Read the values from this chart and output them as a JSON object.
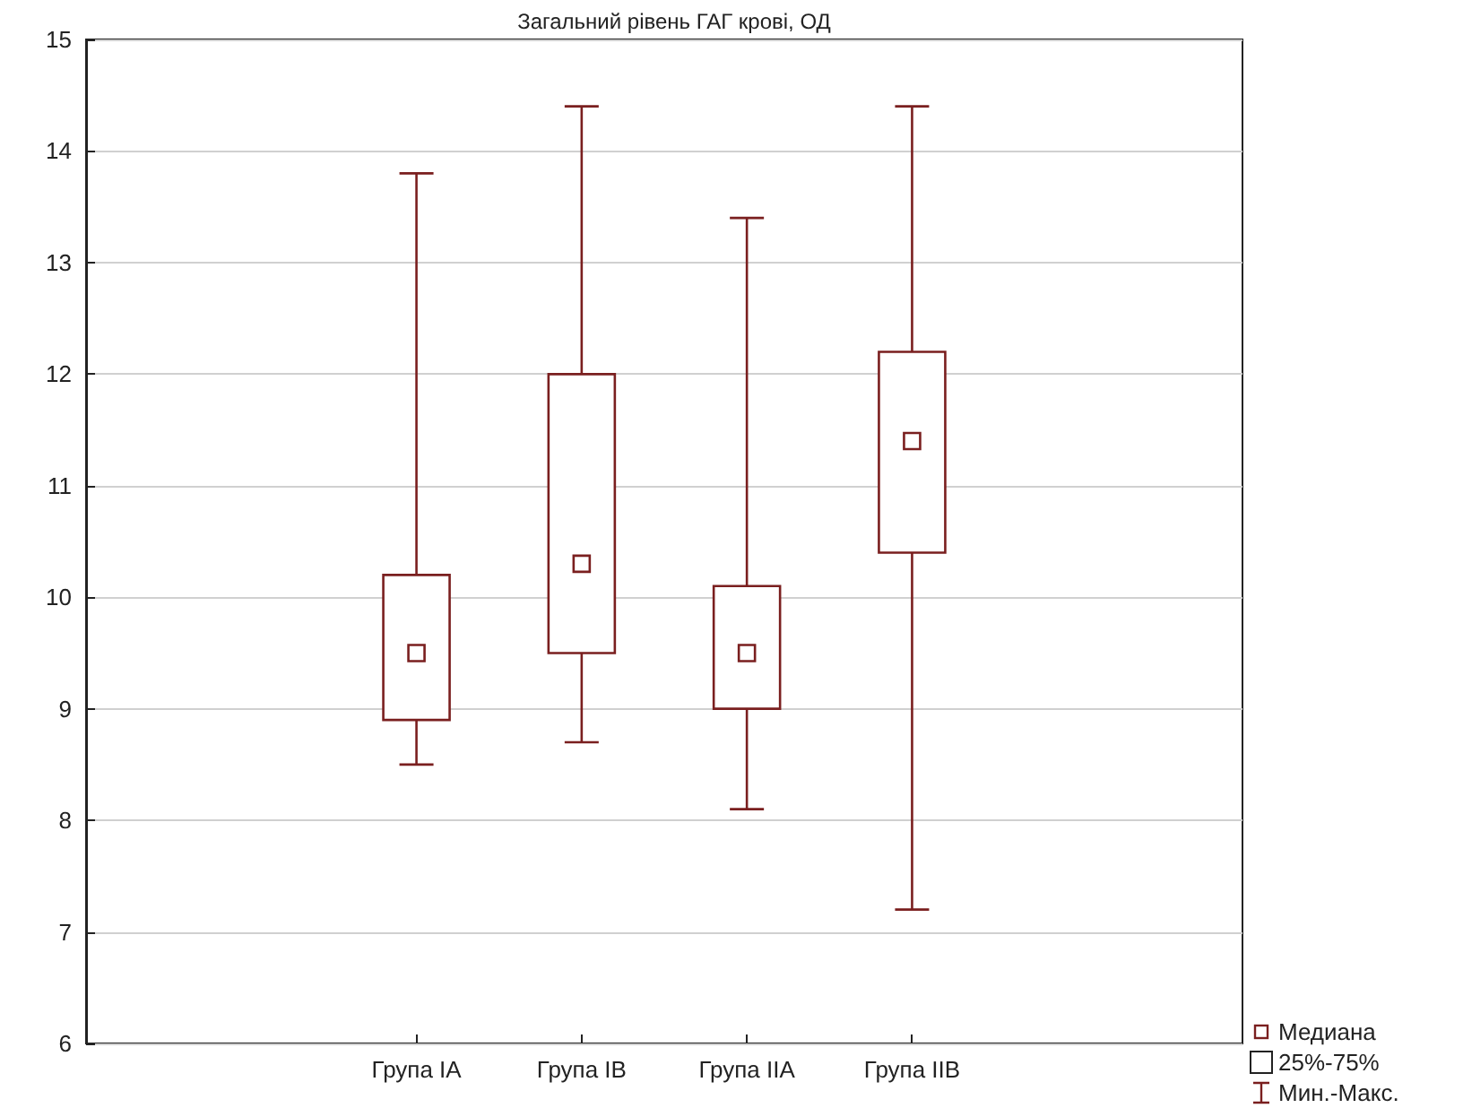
{
  "chart_data": {
    "type": "box",
    "title": "Загальний рівень ГАГ крові, ОД",
    "categories": [
      null,
      null,
      "Група IA",
      "Група IB",
      "Група IIA",
      "Група IIB",
      null,
      null
    ],
    "boxes": [
      null,
      null,
      {
        "low": 8.5,
        "q1": 8.9,
        "median": 9.5,
        "q3": 10.2,
        "high": 13.8
      },
      {
        "low": 8.7,
        "q1": 9.5,
        "median": 10.3,
        "q3": 12.0,
        "high": 14.4
      },
      {
        "low": 8.1,
        "q1": 9.0,
        "median": 9.5,
        "q3": 10.1,
        "high": 13.4
      },
      {
        "low": 7.2,
        "q1": 10.4,
        "median": 11.4,
        "q3": 12.2,
        "high": 14.4
      },
      null,
      null
    ],
    "color": "#7a1f1f",
    "ylim": [
      6,
      15
    ],
    "yticks": [
      6,
      7,
      8,
      9,
      10,
      11,
      12,
      13,
      14,
      15
    ],
    "grid": "y",
    "annotations": [
      "Медиана",
      "25%-75%",
      "Мин.-Макс."
    ]
  }
}
